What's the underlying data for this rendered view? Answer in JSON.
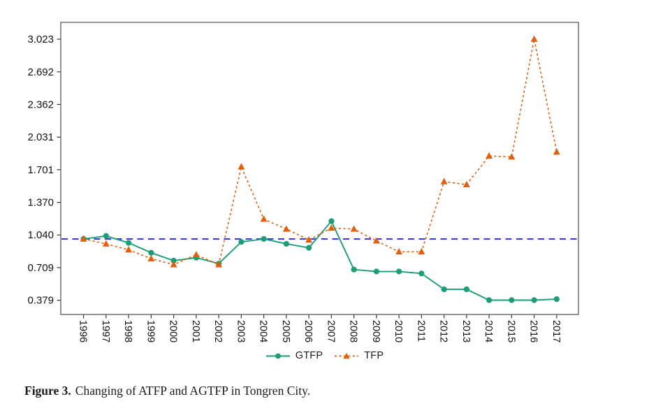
{
  "caption": {
    "label": "Figure 3.",
    "text": "Changing of ATFP and AGTFP in Tongren City."
  },
  "legend": {
    "items": [
      {
        "label": "GTFP"
      },
      {
        "label": "TFP"
      }
    ]
  },
  "chart_data": {
    "type": "line",
    "x": [
      "1996",
      "1997",
      "1998",
      "1999",
      "2000",
      "2001",
      "2002",
      "2003",
      "2004",
      "2005",
      "2006",
      "2007",
      "2008",
      "2009",
      "2010",
      "2011",
      "2012",
      "2013",
      "2014",
      "2015",
      "2016",
      "2017"
    ],
    "series": [
      {
        "name": "GTFP",
        "color": "#1b9e77",
        "line_style": "solid",
        "marker": "circle",
        "values": [
          1.0,
          1.03,
          0.96,
          0.86,
          0.78,
          0.81,
          0.75,
          0.97,
          1.0,
          0.95,
          0.91,
          1.18,
          0.69,
          0.67,
          0.67,
          0.65,
          0.49,
          0.49,
          0.38,
          0.38,
          0.38,
          0.39
        ]
      },
      {
        "name": "TFP",
        "color": "#e0600d",
        "line_style": "dashed",
        "marker": "triangle",
        "values": [
          1.0,
          0.95,
          0.89,
          0.8,
          0.74,
          0.84,
          0.74,
          1.73,
          1.2,
          1.1,
          0.99,
          1.11,
          1.1,
          0.98,
          0.87,
          0.87,
          1.58,
          1.55,
          1.84,
          1.83,
          3.023,
          1.88
        ]
      }
    ],
    "ytick_labels": [
      "3.023",
      "2.692",
      "2.362",
      "2.031",
      "1.701",
      "1.370",
      "1.040",
      "0.709",
      "0.379"
    ],
    "ytick_values": [
      3.023,
      2.692,
      2.362,
      2.031,
      1.701,
      1.37,
      1.04,
      0.709,
      0.379
    ],
    "ylim": [
      0.235,
      3.193
    ],
    "reference_line": {
      "y": 1.0,
      "color": "#2a2aee",
      "style": "dashed"
    },
    "title": "",
    "xlabel": "",
    "ylabel": "",
    "grid": false,
    "legend_position": "bottom-center",
    "frame_color": "#5a5a5a"
  }
}
